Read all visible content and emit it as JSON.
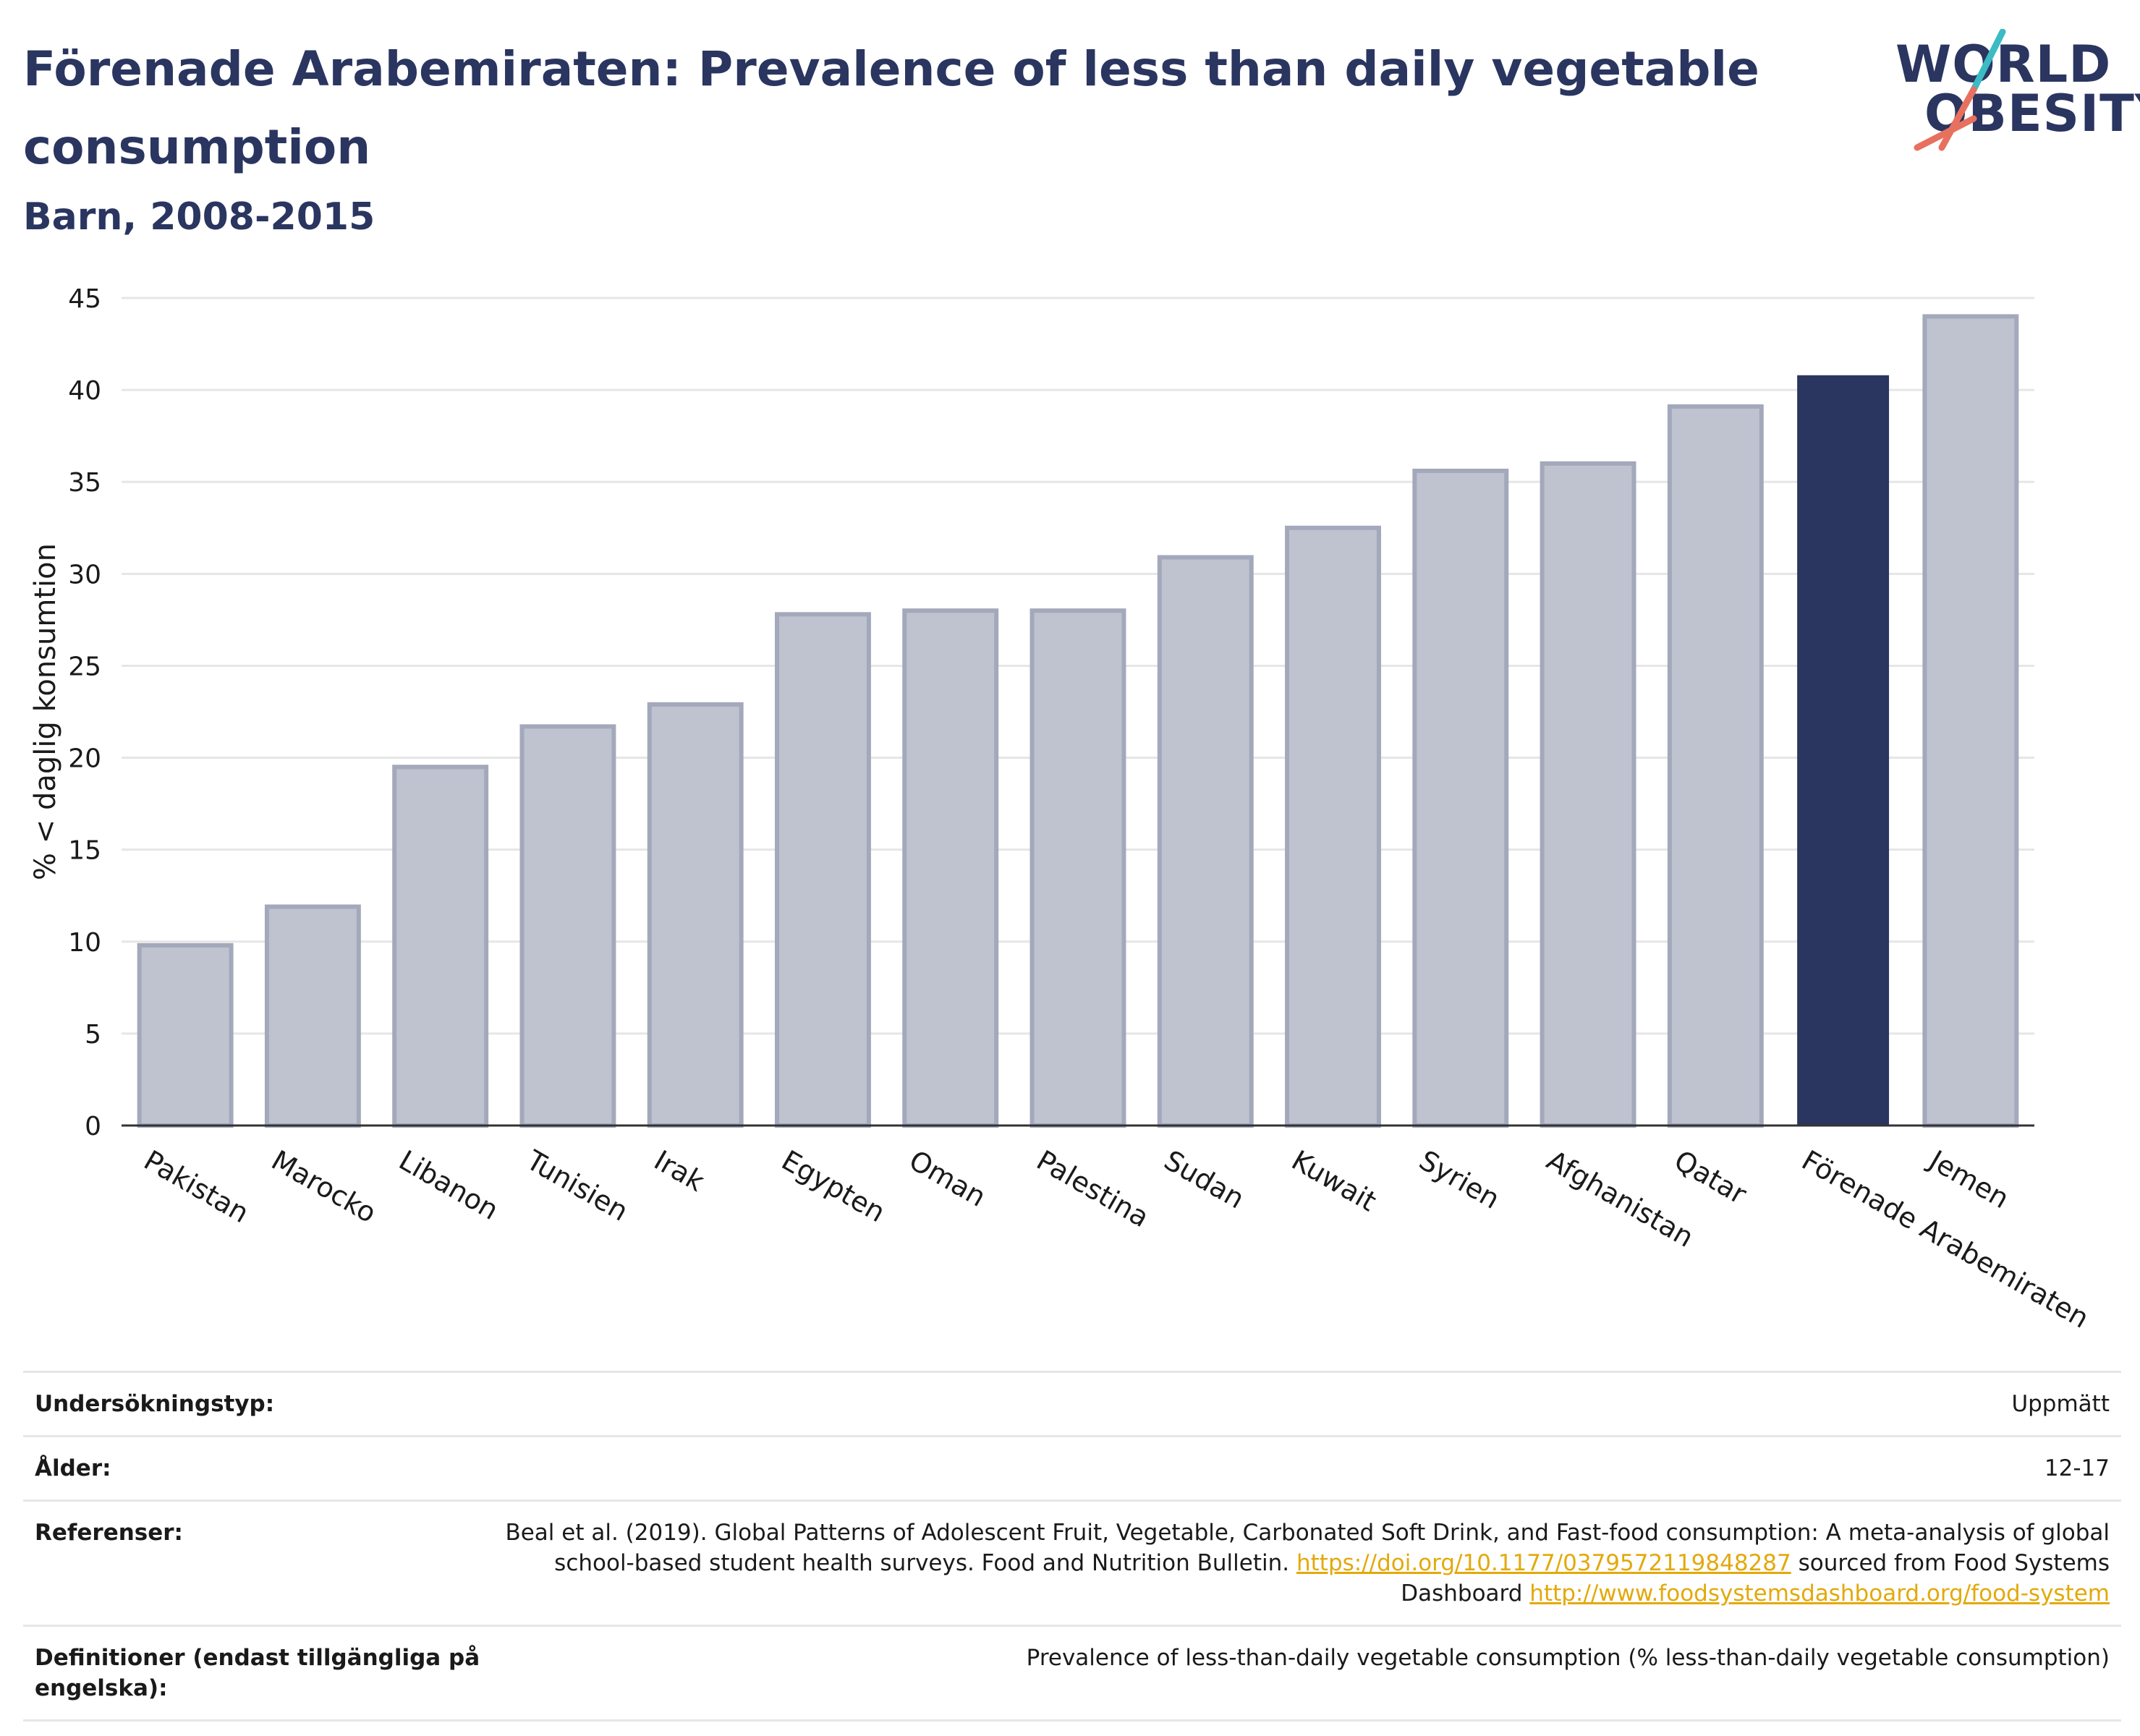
{
  "header": {
    "title": "Förenade Arabemiraten: Prevalence of less than daily vegetable consumption",
    "subtitle": "Barn, 2008-2015",
    "logo_line1": "WORLD",
    "logo_line2": "OBESITY"
  },
  "colors": {
    "title": "#2a3560",
    "bar_default": "#bfc2cf",
    "bar_default_border": "#a3a8bb",
    "bar_highlight": "#2a3560",
    "link": "#e3a90a",
    "logo_slash_teal": "#3bbbc4",
    "logo_slash_coral": "#e8705e"
  },
  "chart_data": {
    "type": "bar",
    "ylabel": "% < daglig konsumtion",
    "ylim": [
      0,
      45
    ],
    "yticks": [
      0,
      5,
      10,
      15,
      20,
      25,
      30,
      35,
      40,
      45
    ],
    "grid": true,
    "highlight": "Förenade Arabemiraten",
    "categories": [
      "Pakistan",
      "Marocko",
      "Libanon",
      "Tunisien",
      "Irak",
      "Egypten",
      "Oman",
      "Palestina",
      "Sudan",
      "Kuwait",
      "Syrien",
      "Afghanistan",
      "Qatar",
      "Förenade Arabemiraten",
      "Jemen"
    ],
    "values": [
      9.8,
      11.9,
      19.5,
      21.7,
      22.9,
      27.8,
      28.0,
      28.0,
      30.9,
      32.5,
      35.6,
      36.0,
      39.1,
      40.8,
      44.0
    ]
  },
  "meta": [
    {
      "key": "Undersökningstyp:",
      "value": "Uppmätt"
    },
    {
      "key": "Ålder:",
      "value": "12-17"
    },
    {
      "key": "Referenser:",
      "value_text": "Beal et al. (2019). Global Patterns of Adolescent Fruit, Vegetable, Carbonated Soft Drink, and Fast-food consumption: A meta-analysis of global school-based student health surveys. Food and Nutrition Bulletin. ",
      "link1": "https://doi.org/10.1177/0379572119848287",
      "mid_text": " sourced from Food Systems Dashboard ",
      "link2": "http://www.foodsystemsdashboard.org/food-system"
    },
    {
      "key": "Definitioner (endast tillgängliga på engelska):",
      "value": "Prevalence of less-than-daily vegetable consumption (% less-than-daily vegetable consumption)"
    }
  ]
}
